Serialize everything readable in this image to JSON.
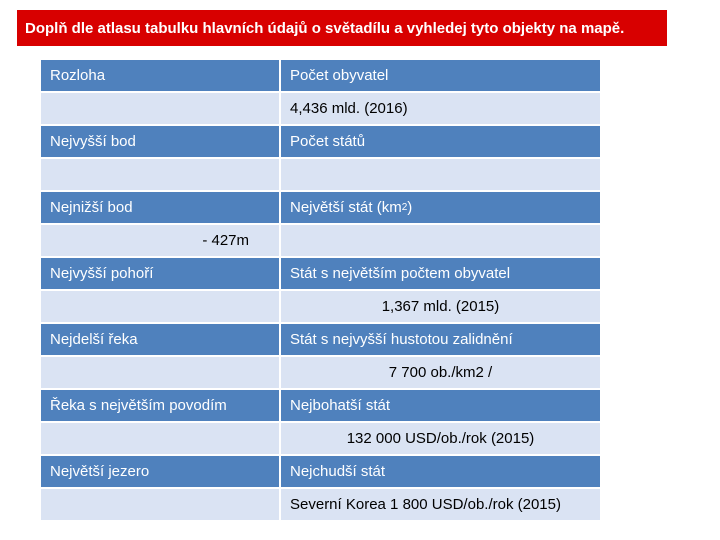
{
  "title": "Doplň dle atlasu tabulku hlavních údajů o světadílu a vyhledej tyto objekty na mapě.",
  "table": {
    "rozloha_label": "Rozloha",
    "pocet_obyvatel_label": "Počet obyvatel",
    "rozloha_value": "",
    "pocet_obyvatel_value": "4,436 mld. (2016)",
    "nejvyssi_bod_label": "Nejvyšší bod",
    "pocet_statu_label": "Počet států",
    "nejvyssi_bod_value": "",
    "pocet_statu_value": "",
    "nejnizsi_bod_label": "Nejnižší bod",
    "nejvetsi_stat_label": "Největší stát (km",
    "nejvetsi_stat_sup": "2",
    "nejvetsi_stat_suffix": " )",
    "nejnizsi_bod_value": "- 427m",
    "nejvetsi_stat_value": "",
    "nejvyssi_pohori_label": "Nejvyšší pohoří",
    "stat_obyvatel_label": "Stát s největším počtem obyvatel",
    "nejvyssi_pohori_value": "",
    "stat_obyvatel_value": "1,367 mld. (2015)",
    "nejdelsi_reka_label": "Nejdelší řeka",
    "hustota_label": "Stát s nejvyšší hustotou zalidnění",
    "nejdelsi_reka_value": "",
    "hustota_value": "7  700 ob./km2 /",
    "reka_povodi_label": "Řeka s největším povodím",
    "nejbohatsi_label": "Nejbohatší stát",
    "reka_povodi_value": "",
    "nejbohatsi_value": "132 000  USD/ob./rok (2015)",
    "nejvetsi_jezero_label": "Největší jezero",
    "nejchudsi_label": "Nejchudší stát",
    "nejvetsi_jezero_value": "",
    "nejchudsi_value": "Severní Korea  1 800 USD/ob./rok (2015)"
  }
}
